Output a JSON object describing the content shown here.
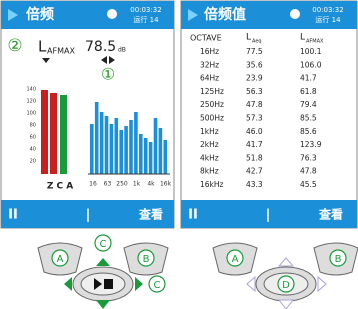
{
  "left_screen": {
    "title": "倍频",
    "clock": "00:03:32",
    "run": "运行 14",
    "marker_2": "②",
    "level_symbol": "L",
    "level_subscript": "AFMAX",
    "level_value": "78.5",
    "level_unit": "dB",
    "marker_1": "①",
    "scale": [
      "140",
      "120",
      "100",
      "80",
      "60",
      "40",
      "20"
    ],
    "weightings": "Z C A",
    "bands": [
      "16",
      "63",
      "250",
      "1k",
      "4k",
      "16k"
    ],
    "soft_keys": [
      "II",
      "|",
      "查看"
    ]
  },
  "right_screen": {
    "title": "倍频值",
    "clock": "00:03:32",
    "run": "运行 14",
    "header": [
      "OCTAVE",
      {
        "main": "L",
        "sub": "Aeq"
      },
      {
        "main": "L",
        "sub": "AFMAX"
      }
    ],
    "rows": [
      [
        "16Hz",
        "77.5",
        "100.1"
      ],
      [
        "32Hz",
        "35.6",
        "106.0"
      ],
      [
        "64Hz",
        "23.9",
        "41.7"
      ],
      [
        "125Hz",
        "56.3",
        "61.8"
      ],
      [
        "250Hz",
        "47.8",
        "79.4"
      ],
      [
        "500Hz",
        "57.3",
        "85.5"
      ],
      [
        "1kHz",
        "46.0",
        "85.6"
      ],
      [
        "2kHz",
        "41.7",
        "123.9"
      ],
      [
        "4kHz",
        "51.8",
        "76.3"
      ],
      [
        "8kHz",
        "42.7",
        "47.8"
      ],
      [
        "16kHz",
        "43.3",
        "45.5"
      ]
    ],
    "soft_keys": [
      "II",
      "|",
      "查看"
    ]
  },
  "buttons": {
    "left": [
      "A",
      "B",
      "C",
      "C"
    ],
    "right": [
      "A",
      "B",
      "D"
    ]
  }
}
